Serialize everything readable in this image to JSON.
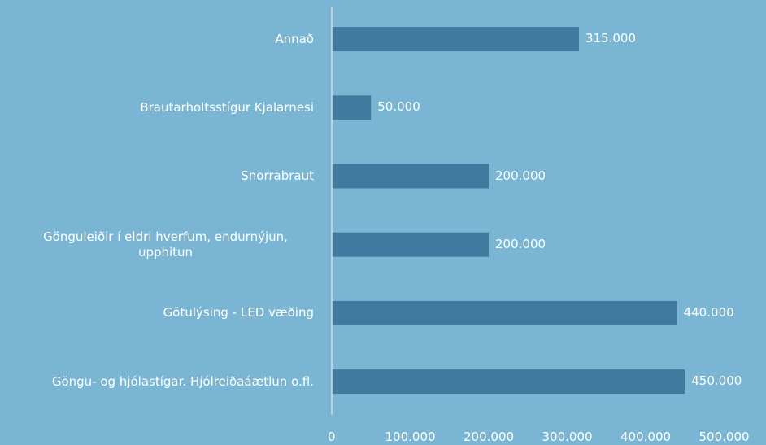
{
  "chart_data": {
    "type": "barh",
    "categories": [
      "Annað",
      "Brautarholtsstígur Kjalarnesi",
      "Snorrabraut",
      "Gönguleiðir í eldri hverfum, endurnýjun, upphitun",
      "Götulýsing - LED væðing",
      "Göngu- og hjólastígar. Hjólreiðaáætlun o.fl."
    ],
    "values": [
      315000,
      50000,
      200000,
      200000,
      440000,
      450000
    ],
    "value_labels": [
      "315.000",
      "50.000",
      "200.000",
      "200.000",
      "440.000",
      "450.000"
    ],
    "color": "#41799f",
    "xlim": [
      0,
      500000
    ],
    "xticks": [
      0,
      {
        "value": 100000,
        "label": "100.000"
      },
      {
        "value": 200000,
        "label": "200.000"
      },
      {
        "value": 300000,
        "label": "300.000"
      },
      {
        "value": 400000,
        "label": "400.000"
      },
      {
        "value": 500000,
        "label": "500.000"
      }
    ]
  }
}
